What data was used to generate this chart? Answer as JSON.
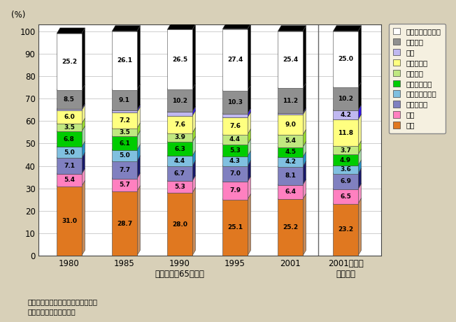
{
  "categories": [
    "1980",
    "1985",
    "1990",
    "1995",
    "2001",
    "2001（年）"
  ],
  "xlabel_main": "世帯主年齂65歳以上",
  "xlabel_sub": "年齢総数",
  "ylabel": "(%)",
  "note1": "資料：総務省「家計調査」より作成",
  "note2": "（注）単身世帯は対象外",
  "series_names": [
    "食料",
    "住居",
    "光熱・水道",
    "家具・家事用品",
    "被服及び履物",
    "保健医療",
    "交通・通信",
    "教育",
    "教養娯楽",
    "その他の消費支出"
  ],
  "colors": [
    "#E07820",
    "#FF80C0",
    "#8080C0",
    "#80C0E0",
    "#00CC00",
    "#C0E880",
    "#FFFF80",
    "#C0B8F0",
    "#909090",
    "#FFFFFF"
  ],
  "data": [
    [
      31.0,
      28.7,
      28.0,
      25.1,
      25.2,
      23.2
    ],
    [
      5.4,
      5.7,
      5.3,
      7.9,
      6.4,
      6.5
    ],
    [
      7.1,
      7.7,
      6.7,
      7.0,
      8.1,
      6.9
    ],
    [
      5.0,
      5.0,
      4.4,
      4.3,
      4.2,
      3.6
    ],
    [
      6.8,
      6.1,
      6.3,
      5.3,
      4.5,
      4.9
    ],
    [
      3.5,
      3.5,
      3.9,
      4.4,
      5.4,
      3.7
    ],
    [
      6.0,
      7.2,
      7.6,
      7.6,
      9.0,
      11.8
    ],
    [
      0.5,
      0.9,
      1.8,
      1.7,
      0.6,
      4.2
    ],
    [
      8.5,
      9.1,
      10.2,
      10.3,
      11.2,
      10.2
    ],
    [
      25.2,
      26.1,
      26.5,
      27.4,
      25.4,
      25.0
    ]
  ],
  "bar_width": 0.45,
  "ylim": [
    0,
    100
  ],
  "bg_color": "#D8D0B8",
  "plot_bg": "#FFFFFF",
  "edge_color": "#444444",
  "grid_color": "#BBBBBB",
  "legend_bg": "#F5F0E0"
}
